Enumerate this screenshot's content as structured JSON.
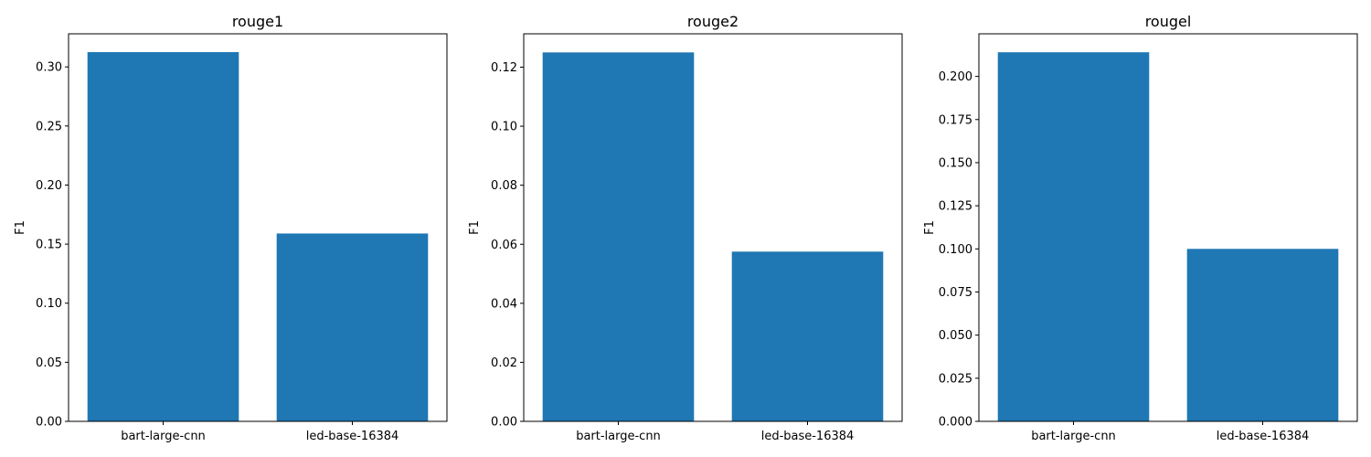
{
  "chart_data": [
    {
      "type": "bar",
      "title": "rouge1",
      "xlabel": "",
      "ylabel": "F1",
      "categories": [
        "bart-large-cnn",
        "led-base-16384"
      ],
      "values": [
        0.3125,
        0.159
      ],
      "ylim": [
        0,
        0.328
      ],
      "yticks": [
        0.0,
        0.05,
        0.1,
        0.15,
        0.2,
        0.25,
        0.3
      ],
      "ytick_labels": [
        "0.00",
        "0.05",
        "0.10",
        "0.15",
        "0.20",
        "0.25",
        "0.30"
      ],
      "bar_color": "#1f77b4",
      "grid": false,
      "legend": "none"
    },
    {
      "type": "bar",
      "title": "rouge2",
      "xlabel": "",
      "ylabel": "F1",
      "categories": [
        "bart-large-cnn",
        "led-base-16384"
      ],
      "values": [
        0.125,
        0.0575
      ],
      "ylim": [
        0,
        0.1313
      ],
      "yticks": [
        0.0,
        0.02,
        0.04,
        0.06,
        0.08,
        0.1,
        0.12
      ],
      "ytick_labels": [
        "0.00",
        "0.02",
        "0.04",
        "0.06",
        "0.08",
        "0.10",
        "0.12"
      ],
      "bar_color": "#1f77b4",
      "grid": false,
      "legend": "none"
    },
    {
      "type": "bar",
      "title": "rougel",
      "xlabel": "",
      "ylabel": "F1",
      "categories": [
        "bart-large-cnn",
        "led-base-16384"
      ],
      "values": [
        0.214,
        0.1
      ],
      "ylim": [
        0,
        0.2247
      ],
      "yticks": [
        0.0,
        0.025,
        0.05,
        0.075,
        0.1,
        0.125,
        0.15,
        0.175,
        0.2
      ],
      "ytick_labels": [
        "0.000",
        "0.025",
        "0.050",
        "0.075",
        "0.100",
        "0.125",
        "0.150",
        "0.175",
        "0.200"
      ],
      "bar_color": "#1f77b4",
      "grid": false,
      "legend": "none"
    }
  ]
}
